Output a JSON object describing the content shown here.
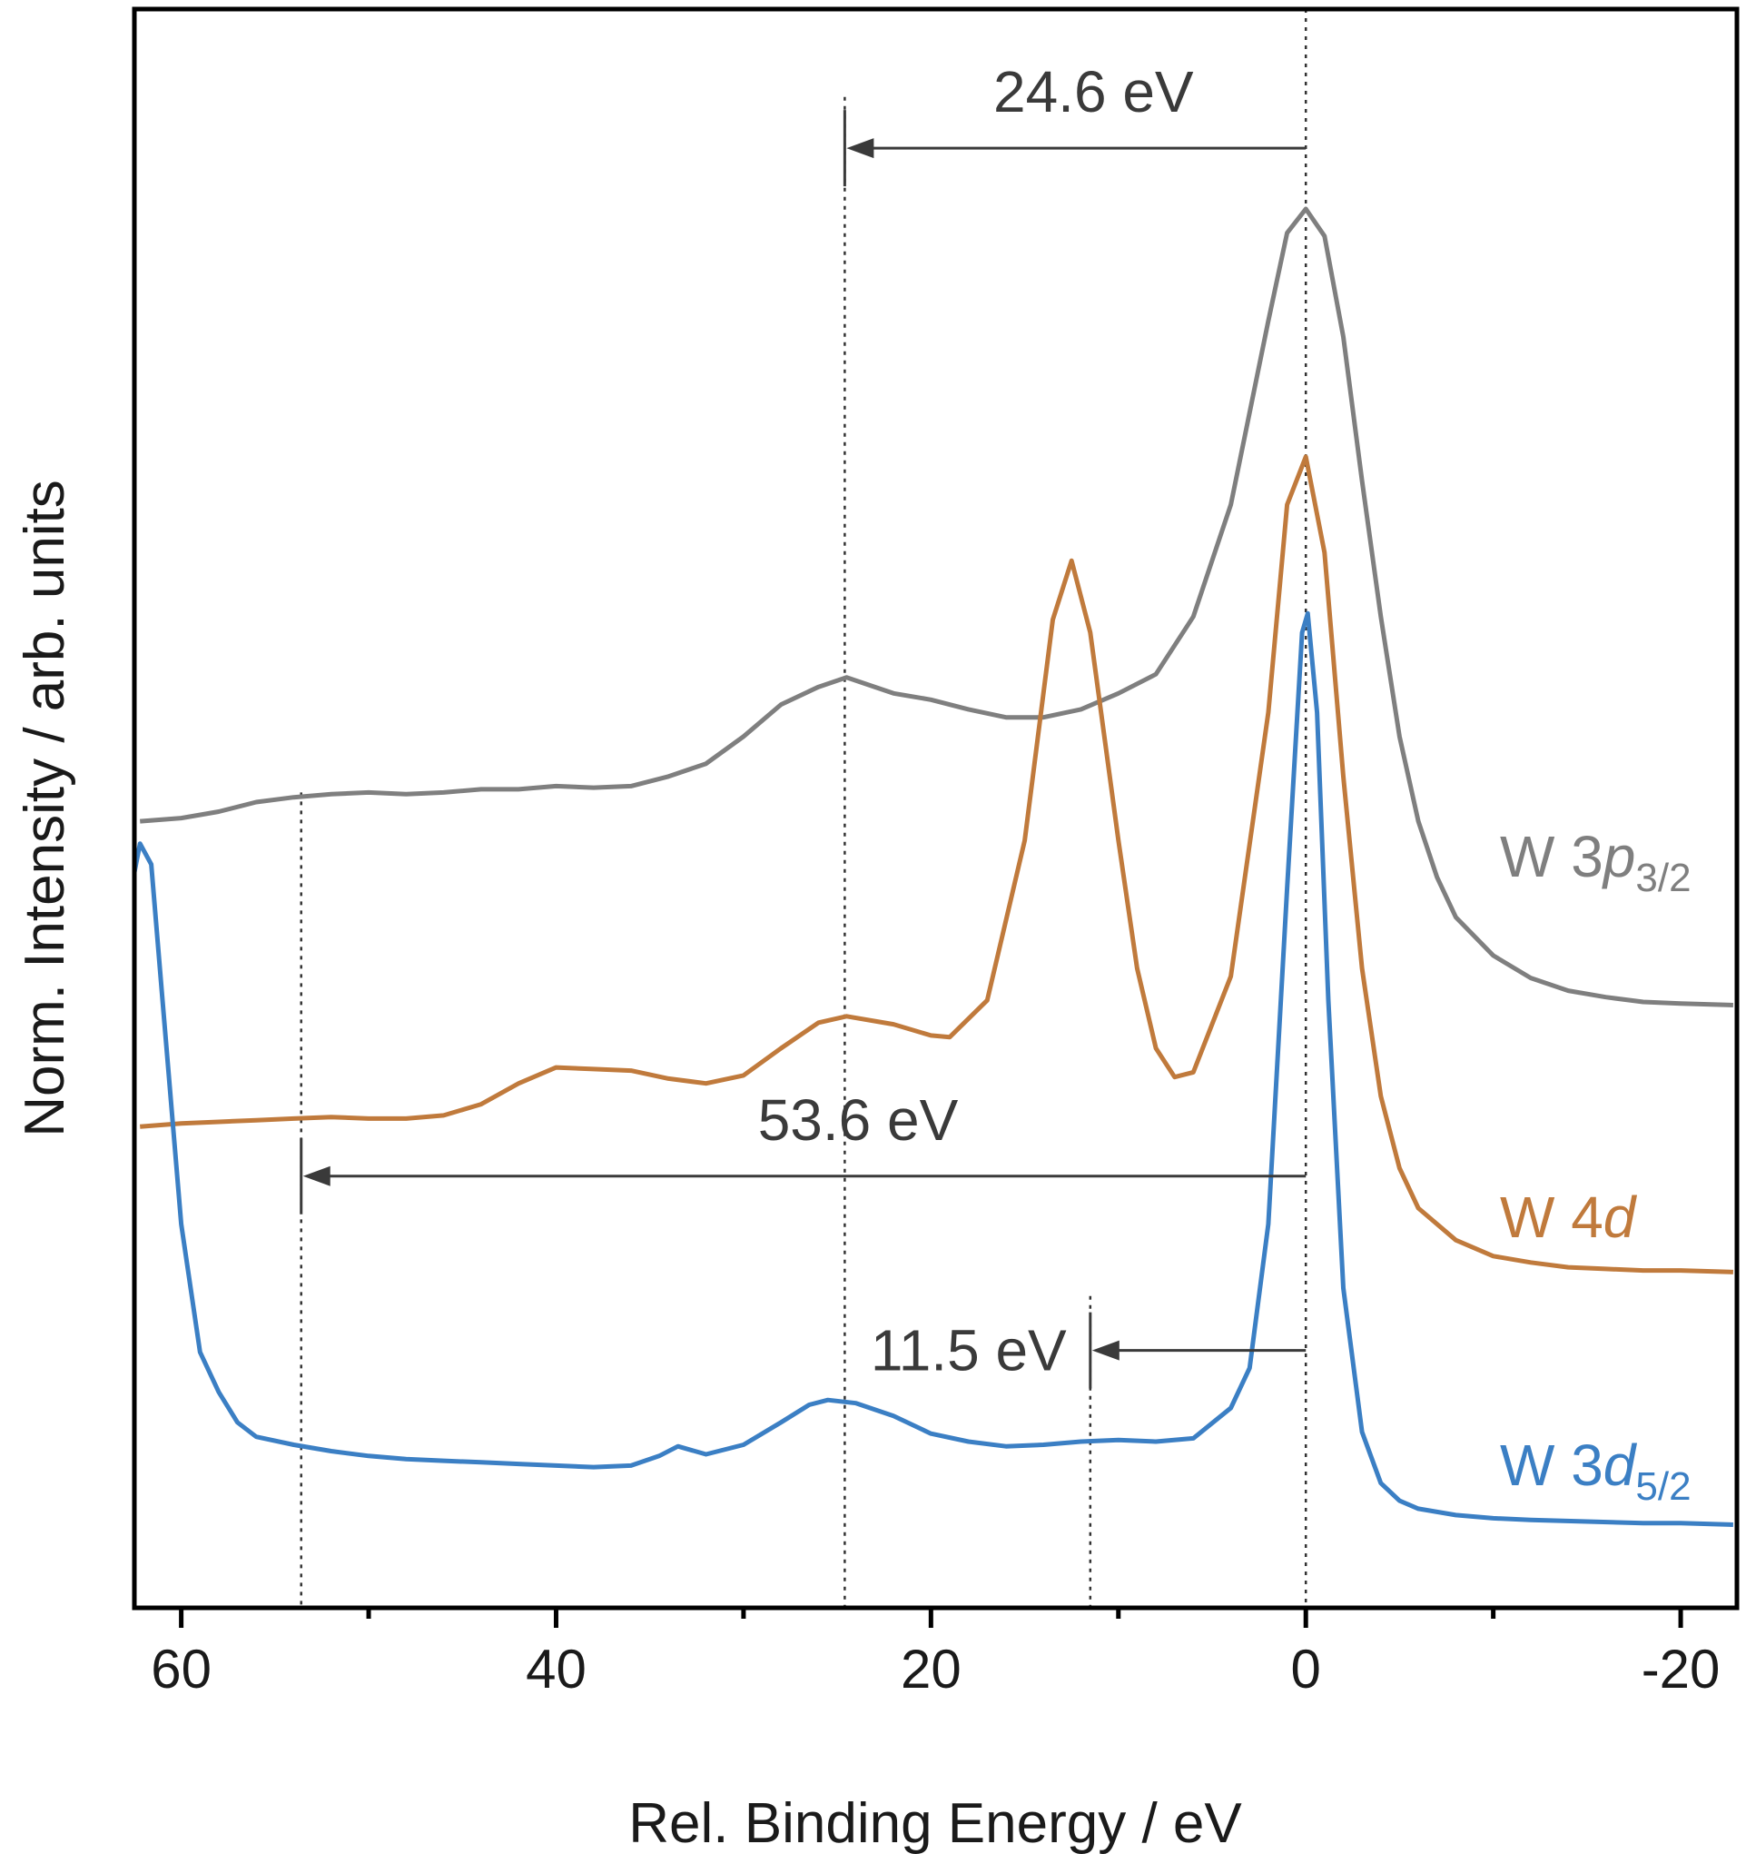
{
  "chart_data": {
    "type": "line",
    "title": "",
    "xlabel": "Rel. Binding Energy / eV",
    "ylabel": "Norm. Intensity / arb. units",
    "xlim": [
      62.5,
      -23.0
    ],
    "ylim": [
      0,
      1
    ],
    "x_reversed": true,
    "grid": false,
    "legend": "inline labels at right",
    "xticks_major": [
      60,
      40,
      20,
      0,
      -20
    ],
    "xtick_labels": [
      "60",
      "40",
      "20",
      "0",
      "-20"
    ],
    "xticks_minor": [
      50,
      30,
      10,
      -10
    ],
    "series": [
      {
        "name": "W 3p3/2",
        "label": {
          "prefix": "W 3",
          "orbital": "p",
          "subscript": "3/2"
        },
        "color": "#7f7f7f",
        "points": [
          [
            62.2,
            0.492
          ],
          [
            60,
            0.494
          ],
          [
            58,
            0.498
          ],
          [
            56,
            0.504
          ],
          [
            54,
            0.507
          ],
          [
            52,
            0.509
          ],
          [
            50,
            0.51
          ],
          [
            48,
            0.509
          ],
          [
            46,
            0.51
          ],
          [
            44,
            0.512
          ],
          [
            42,
            0.512
          ],
          [
            40,
            0.514
          ],
          [
            38,
            0.513
          ],
          [
            36,
            0.514
          ],
          [
            34,
            0.52
          ],
          [
            32,
            0.528
          ],
          [
            30,
            0.545
          ],
          [
            28,
            0.565
          ],
          [
            26,
            0.576
          ],
          [
            24.5,
            0.582
          ],
          [
            22,
            0.572
          ],
          [
            20,
            0.568
          ],
          [
            18,
            0.562
          ],
          [
            16,
            0.557
          ],
          [
            14,
            0.557
          ],
          [
            12,
            0.562
          ],
          [
            10,
            0.572
          ],
          [
            8,
            0.584
          ],
          [
            6,
            0.62
          ],
          [
            4,
            0.69
          ],
          [
            2,
            0.805
          ],
          [
            1,
            0.86
          ],
          [
            0,
            0.875
          ],
          [
            -1,
            0.858
          ],
          [
            -2,
            0.795
          ],
          [
            -3,
            0.705
          ],
          [
            -4,
            0.62
          ],
          [
            -5,
            0.545
          ],
          [
            -6,
            0.492
          ],
          [
            -7,
            0.457
          ],
          [
            -8,
            0.432
          ],
          [
            -10,
            0.408
          ],
          [
            -12,
            0.394
          ],
          [
            -14,
            0.386
          ],
          [
            -16,
            0.382
          ],
          [
            -18,
            0.379
          ],
          [
            -20,
            0.378
          ],
          [
            -22.8,
            0.377
          ]
        ]
      },
      {
        "name": "W 4d",
        "label": {
          "prefix": "W 4",
          "orbital": "d",
          "subscript": ""
        },
        "color": "#c07a3c",
        "points": [
          [
            62.2,
            0.301
          ],
          [
            60,
            0.303
          ],
          [
            58,
            0.304
          ],
          [
            56,
            0.305
          ],
          [
            54,
            0.306
          ],
          [
            52,
            0.307
          ],
          [
            50,
            0.306
          ],
          [
            48,
            0.306
          ],
          [
            46,
            0.308
          ],
          [
            44,
            0.315
          ],
          [
            42,
            0.328
          ],
          [
            40,
            0.338
          ],
          [
            38,
            0.337
          ],
          [
            36,
            0.336
          ],
          [
            34,
            0.331
          ],
          [
            32,
            0.328
          ],
          [
            30,
            0.333
          ],
          [
            28,
            0.35
          ],
          [
            26,
            0.366
          ],
          [
            24.5,
            0.37
          ],
          [
            22,
            0.365
          ],
          [
            20,
            0.358
          ],
          [
            19,
            0.357
          ],
          [
            17,
            0.38
          ],
          [
            15,
            0.48
          ],
          [
            13.5,
            0.618
          ],
          [
            12.5,
            0.655
          ],
          [
            11.5,
            0.61
          ],
          [
            10,
            0.48
          ],
          [
            9,
            0.4
          ],
          [
            8,
            0.35
          ],
          [
            7,
            0.332
          ],
          [
            6,
            0.335
          ],
          [
            4,
            0.395
          ],
          [
            2,
            0.56
          ],
          [
            1,
            0.69
          ],
          [
            0,
            0.72
          ],
          [
            -1,
            0.66
          ],
          [
            -2,
            0.52
          ],
          [
            -3,
            0.4
          ],
          [
            -4,
            0.32
          ],
          [
            -5,
            0.275
          ],
          [
            -6,
            0.25
          ],
          [
            -8,
            0.23
          ],
          [
            -10,
            0.22
          ],
          [
            -12,
            0.216
          ],
          [
            -14,
            0.213
          ],
          [
            -16,
            0.212
          ],
          [
            -18,
            0.211
          ],
          [
            -20,
            0.211
          ],
          [
            -22.8,
            0.21
          ]
        ]
      },
      {
        "name": "W 3d5/2",
        "label": {
          "prefix": "W 3",
          "orbital": "d",
          "subscript": "5/2"
        },
        "color": "#3b7fc4",
        "points": [
          [
            62.5,
            0.46
          ],
          [
            62.2,
            0.478
          ],
          [
            61.6,
            0.465
          ],
          [
            61,
            0.38
          ],
          [
            60,
            0.24
          ],
          [
            59,
            0.16
          ],
          [
            58,
            0.135
          ],
          [
            57,
            0.116
          ],
          [
            56,
            0.107
          ],
          [
            54,
            0.102
          ],
          [
            52,
            0.098
          ],
          [
            50,
            0.095
          ],
          [
            48,
            0.093
          ],
          [
            46,
            0.092
          ],
          [
            44,
            0.091
          ],
          [
            42,
            0.09
          ],
          [
            40,
            0.089
          ],
          [
            38,
            0.088
          ],
          [
            36,
            0.089
          ],
          [
            34.5,
            0.095
          ],
          [
            33.5,
            0.101
          ],
          [
            32,
            0.096
          ],
          [
            30,
            0.102
          ],
          [
            28,
            0.116
          ],
          [
            26.5,
            0.127
          ],
          [
            25.5,
            0.13
          ],
          [
            24,
            0.128
          ],
          [
            22,
            0.12
          ],
          [
            20,
            0.109
          ],
          [
            18,
            0.104
          ],
          [
            16,
            0.101
          ],
          [
            14,
            0.102
          ],
          [
            12,
            0.104
          ],
          [
            10,
            0.105
          ],
          [
            8,
            0.104
          ],
          [
            6,
            0.106
          ],
          [
            4,
            0.125
          ],
          [
            3,
            0.15
          ],
          [
            2,
            0.24
          ],
          [
            1,
            0.45
          ],
          [
            0.2,
            0.61
          ],
          [
            -0.1,
            0.622
          ],
          [
            -0.6,
            0.56
          ],
          [
            -1.2,
            0.38
          ],
          [
            -2,
            0.2
          ],
          [
            -3,
            0.11
          ],
          [
            -4,
            0.078
          ],
          [
            -5,
            0.067
          ],
          [
            -6,
            0.062
          ],
          [
            -8,
            0.058
          ],
          [
            -10,
            0.056
          ],
          [
            -12,
            0.055
          ],
          [
            -15,
            0.054
          ],
          [
            -18,
            0.053
          ],
          [
            -20,
            0.053
          ],
          [
            -22.8,
            0.052
          ]
        ]
      }
    ],
    "reference_lines": [
      0,
      24.6,
      11.5,
      53.6
    ],
    "annotations": [
      {
        "text": "24.6 eV",
        "from_x": 0,
        "to_x": 24.6,
        "y": 0.913
      },
      {
        "text": "53.6 eV",
        "from_x": 0,
        "to_x": 53.6,
        "y": 0.27
      },
      {
        "text": "11.5 eV",
        "from_x": 0,
        "to_x": 11.5,
        "y": 0.161
      }
    ]
  }
}
